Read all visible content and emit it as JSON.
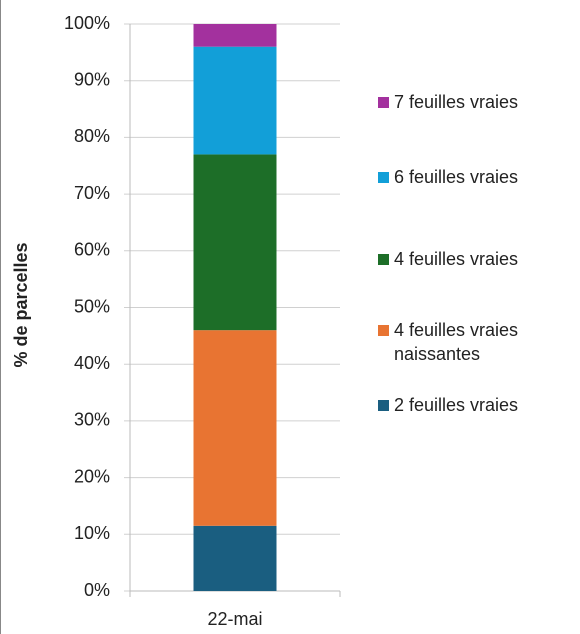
{
  "chart_data": {
    "type": "stacked_bar",
    "y_label": "% de parcelles",
    "categories": [
      "22-mai"
    ],
    "series": [
      {
        "name": "2 feuilles vraies",
        "color": "#1a5e80",
        "values": [
          11.5
        ]
      },
      {
        "name": "4 feuilles vraies naissantes",
        "color": "#e87432",
        "values": [
          34.5
        ]
      },
      {
        "name": "4 feuilles vraies",
        "color": "#1d6e28",
        "values": [
          31
        ]
      },
      {
        "name": "6 feuilles vraies",
        "color": "#129fd8",
        "values": [
          19
        ]
      },
      {
        "name": "7 feuilles vraies",
        "color": "#a3319e",
        "values": [
          4
        ]
      }
    ],
    "ylim": [
      0,
      100
    ],
    "yticks": [
      {
        "value": 0,
        "label": "0%"
      },
      {
        "value": 10,
        "label": "10%"
      },
      {
        "value": 20,
        "label": "20%"
      },
      {
        "value": 30,
        "label": "30%"
      },
      {
        "value": 40,
        "label": "40%"
      },
      {
        "value": 50,
        "label": "50%"
      },
      {
        "value": 60,
        "label": "60%"
      },
      {
        "value": 70,
        "label": "70%"
      },
      {
        "value": 80,
        "label": "80%"
      },
      {
        "value": 90,
        "label": "90%"
      },
      {
        "value": 100,
        "label": "100%"
      }
    ],
    "grid": true,
    "legend": "right"
  }
}
